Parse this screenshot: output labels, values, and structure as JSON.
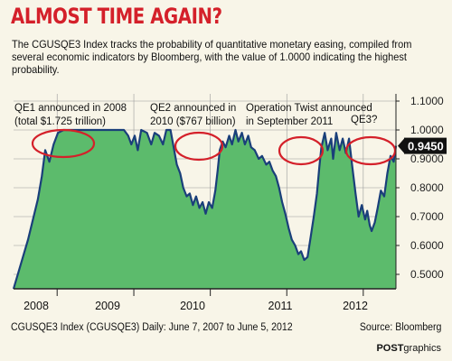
{
  "header": {
    "title": "ALMOST TIME AGAIN?",
    "subtitle": "The CGUSQE3 Index tracks the probability of quantitative monetary easing, compiled from several economic indicators by Bloomberg, with the value of 1.0000 indicating the highest probability."
  },
  "footer": {
    "series_note": "CGUSQE3 Index (CGUSQE3) Daily: June 7, 2007 to June 5, 2012",
    "source": "Source: Bloomberg",
    "credit_bold": "POST",
    "credit_light": "graphics"
  },
  "colors": {
    "title": "#d4202a",
    "area_fill": "#5cbb6c",
    "line": "#1a3f7a",
    "highlight_ellipse": "#d4202a",
    "background": "#f8f5e8",
    "last_value_box": "#111111"
  },
  "chart_data": {
    "type": "area",
    "title": "ALMOST TIME AGAIN?",
    "xlabel": "",
    "ylabel": "",
    "grid": true,
    "yaxis_position": "right",
    "ylim": [
      0.45,
      1.1
    ],
    "yticks": [
      "0.5000",
      "0.6000",
      "0.7000",
      "0.8000",
      "0.9000",
      "1.0000",
      "1.1000"
    ],
    "xlim": [
      "2007-06-07",
      "2012-06-05"
    ],
    "x_tick_labels": [
      {
        "label": "2008",
        "date": "2008-01-01"
      },
      {
        "label": "2009",
        "date": "2009-01-01"
      },
      {
        "label": "2010",
        "date": "2010-01-01"
      },
      {
        "label": "2011",
        "date": "2011-01-01"
      },
      {
        "label": "2012",
        "date": "2012-01-01"
      }
    ],
    "last_value": "0.9450",
    "series": [
      {
        "points": [
          [
            "2007-06-07",
            0.45
          ],
          [
            "2007-08-15",
            0.62
          ],
          [
            "2007-10-01",
            0.76
          ],
          [
            "2007-10-20",
            0.84
          ],
          [
            "2007-11-05",
            0.93
          ],
          [
            "2007-11-25",
            0.89
          ],
          [
            "2007-12-15",
            0.95
          ],
          [
            "2008-01-05",
            0.99
          ],
          [
            "2008-02-01",
            1.0
          ],
          [
            "2008-06-01",
            1.0
          ],
          [
            "2008-10-01",
            1.0
          ],
          [
            "2008-11-15",
            1.0
          ],
          [
            "2008-12-05",
            0.98
          ],
          [
            "2008-12-20",
            0.95
          ],
          [
            "2009-01-05",
            0.98
          ],
          [
            "2009-01-20",
            0.93
          ],
          [
            "2009-02-05",
            1.0
          ],
          [
            "2009-03-05",
            0.99
          ],
          [
            "2009-03-25",
            0.95
          ],
          [
            "2009-04-10",
            0.99
          ],
          [
            "2009-05-01",
            0.98
          ],
          [
            "2009-05-20",
            0.95
          ],
          [
            "2009-06-05",
            1.0
          ],
          [
            "2009-06-25",
            1.0
          ],
          [
            "2009-07-10",
            0.94
          ],
          [
            "2009-07-25",
            0.88
          ],
          [
            "2009-08-10",
            0.85
          ],
          [
            "2009-08-25",
            0.8
          ],
          [
            "2009-09-10",
            0.77
          ],
          [
            "2009-09-25",
            0.78
          ],
          [
            "2009-10-10",
            0.74
          ],
          [
            "2009-10-25",
            0.77
          ],
          [
            "2009-11-10",
            0.73
          ],
          [
            "2009-11-25",
            0.75
          ],
          [
            "2009-12-10",
            0.71
          ],
          [
            "2009-12-25",
            0.75
          ],
          [
            "2010-01-10",
            0.73
          ],
          [
            "2010-01-25",
            0.79
          ],
          [
            "2010-02-05",
            0.86
          ],
          [
            "2010-02-15",
            0.93
          ],
          [
            "2010-03-01",
            0.96
          ],
          [
            "2010-03-15",
            0.94
          ],
          [
            "2010-04-01",
            0.98
          ],
          [
            "2010-04-15",
            0.95
          ],
          [
            "2010-05-01",
            1.0
          ],
          [
            "2010-05-15",
            0.96
          ],
          [
            "2010-06-01",
            0.99
          ],
          [
            "2010-06-15",
            0.95
          ],
          [
            "2010-07-01",
            0.98
          ],
          [
            "2010-07-15",
            0.94
          ],
          [
            "2010-08-01",
            0.93
          ],
          [
            "2010-08-20",
            0.9
          ],
          [
            "2010-09-05",
            0.91
          ],
          [
            "2010-09-25",
            0.88
          ],
          [
            "2010-10-10",
            0.89
          ],
          [
            "2010-10-25",
            0.86
          ],
          [
            "2010-11-10",
            0.84
          ],
          [
            "2010-11-25",
            0.8
          ],
          [
            "2010-12-10",
            0.75
          ],
          [
            "2010-12-25",
            0.71
          ],
          [
            "2011-01-10",
            0.66
          ],
          [
            "2011-01-25",
            0.62
          ],
          [
            "2011-02-10",
            0.6
          ],
          [
            "2011-02-25",
            0.57
          ],
          [
            "2011-03-10",
            0.58
          ],
          [
            "2011-03-25",
            0.55
          ],
          [
            "2011-04-10",
            0.56
          ],
          [
            "2011-04-25",
            0.63
          ],
          [
            "2011-05-10",
            0.7
          ],
          [
            "2011-05-25",
            0.78
          ],
          [
            "2011-06-05",
            0.87
          ],
          [
            "2011-06-15",
            0.94
          ],
          [
            "2011-07-01",
            0.99
          ],
          [
            "2011-07-15",
            0.93
          ],
          [
            "2011-08-01",
            0.97
          ],
          [
            "2011-08-10",
            0.9
          ],
          [
            "2011-08-25",
            0.99
          ],
          [
            "2011-09-10",
            0.93
          ],
          [
            "2011-09-25",
            0.97
          ],
          [
            "2011-10-10",
            0.92
          ],
          [
            "2011-10-25",
            0.97
          ],
          [
            "2011-11-10",
            0.87
          ],
          [
            "2011-11-25",
            0.78
          ],
          [
            "2011-12-10",
            0.7
          ],
          [
            "2011-12-25",
            0.74
          ],
          [
            "2012-01-10",
            0.69
          ],
          [
            "2012-01-20",
            0.72
          ],
          [
            "2012-02-01",
            0.67
          ],
          [
            "2012-02-10",
            0.65
          ],
          [
            "2012-02-25",
            0.68
          ],
          [
            "2012-03-10",
            0.73
          ],
          [
            "2012-03-25",
            0.79
          ],
          [
            "2012-04-10",
            0.77
          ],
          [
            "2012-04-25",
            0.85
          ],
          [
            "2012-05-10",
            0.91
          ],
          [
            "2012-05-25",
            0.89
          ],
          [
            "2012-06-05",
            0.945
          ]
        ]
      }
    ],
    "annotations": [
      {
        "lines": [
          "QE1 announced in 2008",
          "(total $1.725 trillion)"
        ],
        "date": "2008-06-01"
      },
      {
        "lines": [
          "QE2 announced in",
          "2010 ($767 billion)"
        ],
        "date": "2010-05-01"
      },
      {
        "lines": [
          "Operation Twist announced",
          "in September 2011"
        ],
        "date": "2011-08-25"
      },
      {
        "lines": [
          "QE3?"
        ],
        "date": "2012-05-01"
      }
    ]
  }
}
